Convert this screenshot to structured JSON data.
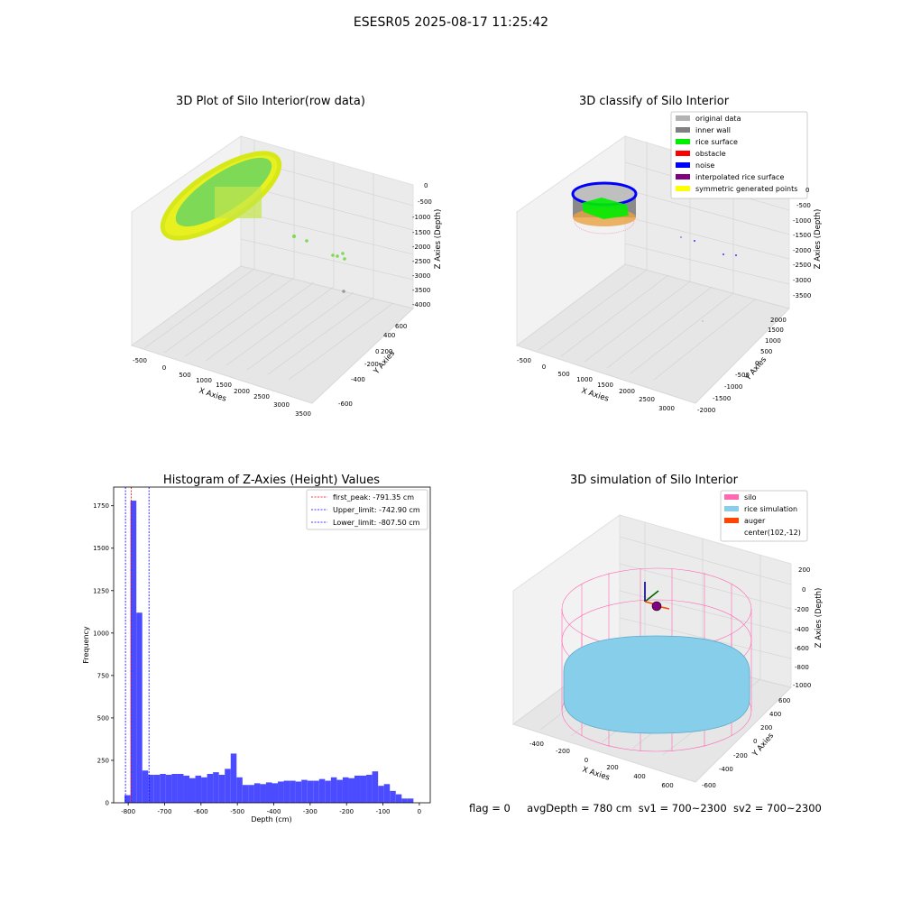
{
  "figure": {
    "title": "ESESR05 2025-08-17 11:25:42",
    "status": {
      "flag": "flag = 0",
      "avg_depth": "avgDepth = 780 cm",
      "sv1": "sv1 = 700~2300",
      "sv2": "sv2 = 700~2300"
    }
  },
  "colors": {
    "histogram_bar": "#4b4bff",
    "first_peak_line": "#ff0000",
    "limit_lines": "#0000ff",
    "original_data": "#b3b3b3",
    "inner_wall": "#808080",
    "rice_surface": "#00ee00",
    "obstacle": "#ff0000",
    "noise": "#0000ff",
    "interpolated_rice_surface": "#800080",
    "symmetric_generated_points": "#ffff00",
    "silo": "#ff69b4",
    "rice_simulation": "#87ceeb",
    "auger": "#ff4500"
  },
  "chart_data": [
    {
      "type": "scatter",
      "title": "3D Plot of Silo Interior(row data)",
      "xlabel": "X Axies",
      "ylabel": "Y Axies",
      "zlabel": "Z Axies (Depth)",
      "x_ticks": [
        "-500",
        "0",
        "500",
        "1000",
        "1500",
        "2000",
        "2500",
        "3000",
        "3500"
      ],
      "y_ticks": [
        "-600",
        "-400",
        "-200",
        "0",
        "200",
        "400",
        "600"
      ],
      "z_ticks": [
        "0",
        "-500",
        "-1000",
        "-1500",
        "-2000",
        "-2500",
        "-3000",
        "-3500",
        "-4000"
      ],
      "xlim": [
        -600,
        3600
      ],
      "ylim": [
        -650,
        650
      ],
      "zlim": [
        -4000,
        100
      ],
      "series": [
        {
          "name": "",
          "description_points": [
            {
              "x": 0,
              "y": 0,
              "z": -800
            },
            {
              "x": 1700,
              "y": -100,
              "z": -1800
            },
            {
              "x": 2500,
              "y": -150,
              "z": -2200
            },
            {
              "x": 2550,
              "y": -200,
              "z": -2300
            },
            {
              "x": 3000,
              "y": -300,
              "z": -3500
            }
          ]
        }
      ]
    },
    {
      "type": "scatter",
      "title": "3D classify of Silo Interior",
      "xlabel": "X Axies",
      "ylabel": "Y Axies",
      "zlabel": "Z Axies (Depth)",
      "x_ticks": [
        "-500",
        "0",
        "500",
        "1000",
        "1500",
        "2000",
        "2500",
        "3000"
      ],
      "y_ticks": [
        "-2000",
        "-1500",
        "-1000",
        "-500",
        "0",
        "500",
        "1000",
        "1500",
        "2000"
      ],
      "z_ticks": [
        "0",
        "-500",
        "-1000",
        "-1500",
        "-2000",
        "-2500",
        "-3000",
        "-3500"
      ],
      "legend": {
        "position": "top-right",
        "entries": [
          "original data",
          "inner wall",
          "rice surface",
          "obstacle",
          "noise",
          "interpolated rice surface",
          "symmetric generated points"
        ]
      }
    },
    {
      "type": "bar",
      "title": "Histogram of Z-Axies (Height) Values",
      "xlabel": "Depth (cm)",
      "ylabel": "Frequency",
      "xlim": [
        -840,
        30
      ],
      "ylim": [
        0,
        1860
      ],
      "x_ticks": [
        -800,
        -700,
        -600,
        -500,
        -400,
        -300,
        -200,
        -100,
        0
      ],
      "y_ticks": [
        0,
        250,
        500,
        750,
        1000,
        1250,
        1500,
        1750
      ],
      "bin_start": -810,
      "bin_width": 16.2,
      "values": [
        45,
        1780,
        1120,
        190,
        165,
        165,
        170,
        165,
        170,
        170,
        160,
        145,
        160,
        150,
        170,
        180,
        165,
        200,
        290,
        150,
        105,
        105,
        115,
        110,
        120,
        115,
        125,
        130,
        130,
        125,
        135,
        130,
        130,
        140,
        130,
        150,
        135,
        150,
        145,
        160,
        160,
        165,
        185,
        100,
        110,
        70,
        50,
        25,
        25
      ],
      "vlines": [
        {
          "label": "first_peak: -791.35 cm",
          "x": -791.35,
          "style": "red"
        },
        {
          "label": "Upper_limit: -742.90 cm",
          "x": -742.9,
          "style": "blue"
        },
        {
          "label": "Lower_limit: -807.50 cm",
          "x": -807.5,
          "style": "blue"
        }
      ],
      "legend": {
        "position": "top-right"
      }
    },
    {
      "type": "scatter",
      "title": "3D simulation of Silo Interior",
      "xlabel": "X Axies",
      "ylabel": "Y Axies",
      "zlabel": "Z Axies (Depth)",
      "x_ticks": [
        "-400",
        "-200",
        "0",
        "200",
        "400",
        "600"
      ],
      "y_ticks": [
        "-600",
        "-400",
        "-200",
        "0",
        "200",
        "400",
        "600"
      ],
      "z_ticks": [
        "200",
        "0",
        "-200",
        "-400",
        "-600",
        "-800",
        "-1000"
      ],
      "legend": {
        "position": "top-right",
        "entries": [
          "silo",
          "rice simulation",
          "auger",
          "center(102,-12)"
        ]
      }
    }
  ]
}
